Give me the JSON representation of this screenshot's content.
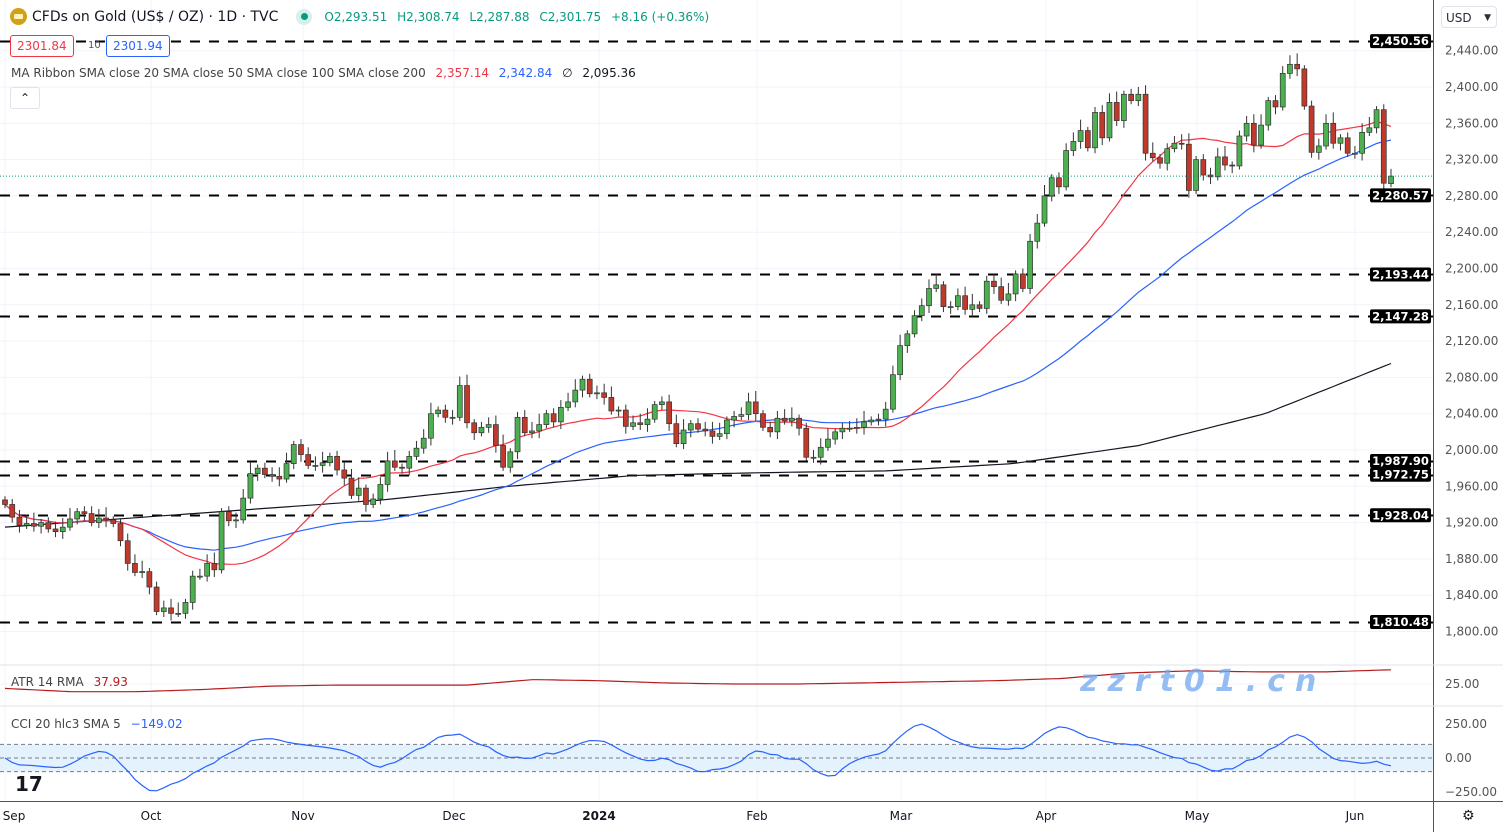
{
  "header": {
    "symbol_title": "CFDs on Gold (US$ / OZ) · 1D · TVC",
    "open": "O2,293.51",
    "high": "H2,308.74",
    "low": "L2,287.88",
    "close": "C2,301.75",
    "change": "+8.16 (+0.36%)",
    "bid": "2301.84",
    "spread": "10",
    "ask": "2301.94",
    "currency": "USD",
    "collapse_icon": "chevron-up-icon"
  },
  "ma_ribbon": {
    "label": "MA Ribbon SMA close 20 SMA close 50 SMA close 100 SMA close 200",
    "v20": "2,357.14",
    "v50": "2,342.84",
    "v100": "∅",
    "v200": "2,095.36"
  },
  "atr": {
    "label": "ATR 14 RMA",
    "value": "37.93",
    "axis": [
      "25.00"
    ]
  },
  "cci": {
    "label": "CCI 20 hlc3 SMA 5",
    "value": "−149.02",
    "axis": [
      "250.00",
      "0.00",
      "−250.00"
    ]
  },
  "watermark": "zzrt01.cn",
  "colors": {
    "up": "#089981",
    "up_body": "#4caf50",
    "down": "#c0392b",
    "sma20": "#f23645",
    "sma50": "#2962ff",
    "sma200": "#131722",
    "atr": "#b71c1c",
    "cci": "#2962ff",
    "band": "#e3f2fd"
  },
  "chart_data": {
    "type": "candlestick",
    "y_range": [
      1780,
      2470
    ],
    "price_ticks": [
      1800,
      1840,
      1880,
      1920,
      1960,
      2000,
      2040,
      2080,
      2120,
      2160,
      2200,
      2240,
      2280,
      2320,
      2360,
      2400,
      2440
    ],
    "price_tick_labels": [
      "1,800.00",
      "1,840.00",
      "1,880.00",
      "1,920.00",
      "1,960.00",
      "2,000.00",
      "2,040.00",
      "2,080.00",
      "2,120.00",
      "2,160.00",
      "2,200.00",
      "2,240.00",
      "2,280.00",
      "2,320.00",
      "2,360.00",
      "2,400.00",
      "2,440.00"
    ],
    "levels": [
      {
        "value": 2450.56,
        "label": "2,450.56"
      },
      {
        "value": 2280.57,
        "label": "2,280.57"
      },
      {
        "value": 2193.44,
        "label": "2,193.44"
      },
      {
        "value": 2147.28,
        "label": "2,147.28"
      },
      {
        "value": 1987.9,
        "label": "1,987.90"
      },
      {
        "value": 1972.75,
        "label": "1,972.75"
      },
      {
        "value": 1928.04,
        "label": "1,928.04"
      },
      {
        "value": 1810.48,
        "label": "1,810.48"
      }
    ],
    "months": [
      "Sep",
      "Oct",
      "Nov",
      "Dec",
      "2024",
      "Feb",
      "Mar",
      "Apr",
      "May",
      "Jun"
    ],
    "closes": [
      1940,
      1926,
      1917,
      1919,
      1916,
      1920,
      1913,
      1910,
      1915,
      1924,
      1932,
      1930,
      1920,
      1925,
      1923,
      1919,
      1900,
      1875,
      1865,
      1866,
      1849,
      1822,
      1826,
      1820,
      1820,
      1832,
      1861,
      1861,
      1875,
      1868,
      1932,
      1922,
      1923,
      1947,
      1974,
      1980,
      1973,
      1971,
      1968,
      1985,
      2006,
      1995,
      1983,
      1983,
      1986,
      1993,
      1978,
      1969,
      1950,
      1958,
      1940,
      1946,
      1962,
      1988,
      1981,
      1980,
      1993,
      2002,
      2013,
      2040,
      2044,
      2036,
      2036,
      2071,
      2030,
      2019,
      2025,
      2028,
      2005,
      1981,
      1998,
      2036,
      2019,
      2021,
      2028,
      2040,
      2031,
      2047,
      2053,
      2066,
      2078,
      2062,
      2063,
      2058,
      2043,
      2044,
      2026,
      2030,
      2028,
      2034,
      2050,
      2053,
      2029,
      2007,
      2022,
      2029,
      2023,
      2021,
      2015,
      2018,
      2033,
      2037,
      2039,
      2053,
      2040,
      2025,
      2020,
      2035,
      2032,
      2035,
      2024,
      1992,
      1992,
      2003,
      2012,
      2020,
      2024,
      2024,
      2025,
      2031,
      2033,
      2034,
      2045,
      2083,
      2115,
      2128,
      2148,
      2159,
      2178,
      2182,
      2158,
      2158,
      2170,
      2155,
      2160,
      2156,
      2186,
      2180,
      2165,
      2172,
      2194,
      2178,
      2230,
      2250,
      2280,
      2300,
      2290,
      2330,
      2340,
      2352,
      2333,
      2372,
      2344,
      2383,
      2363,
      2392,
      2385,
      2392,
      2327,
      2322,
      2316,
      2332,
      2338,
      2337,
      2286,
      2320,
      2303,
      2301,
      2323,
      2314,
      2313,
      2346,
      2360,
      2336,
      2358,
      2385,
      2378,
      2415,
      2425,
      2420,
      2379,
      2328,
      2335,
      2360,
      2338,
      2344,
      2327,
      2327,
      2350,
      2355,
      2375,
      2294,
      2301.75
    ],
    "last_open": 2293.51,
    "sma200": [
      1915,
      1925,
      1935,
      1945,
      1960,
      1972,
      1975,
      1977,
      1985,
      2005,
      2040,
      2095.36
    ],
    "atr_values": [
      21,
      18,
      18,
      20,
      23,
      24,
      24,
      24,
      29,
      28,
      26,
      25,
      25,
      26,
      27,
      28,
      30,
      35,
      37,
      36,
      36,
      37.93
    ]
  }
}
